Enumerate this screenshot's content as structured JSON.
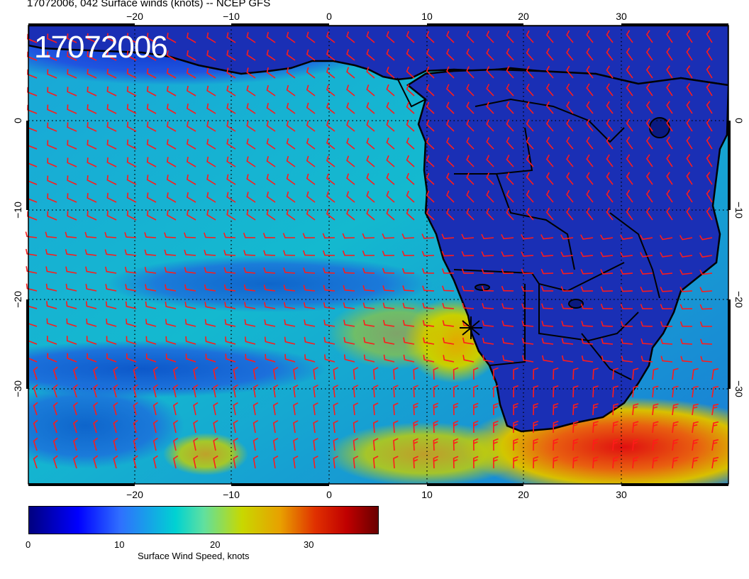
{
  "title": "17072006, 042 Surface winds (knots) -- NCEP GFS",
  "date_stamp": "17072006",
  "map": {
    "lon_ticks": [
      "−20",
      "−10",
      "0",
      "10",
      "20",
      "30"
    ],
    "lat_ticks": [
      "0",
      "−10",
      "−20",
      "−30"
    ],
    "barb_color": "#ff1a1a"
  },
  "colorbar": {
    "label": "Surface Wind Speed, knots",
    "ticks": [
      "0",
      "10",
      "20",
      "30"
    ],
    "range": [
      0,
      36
    ]
  }
}
